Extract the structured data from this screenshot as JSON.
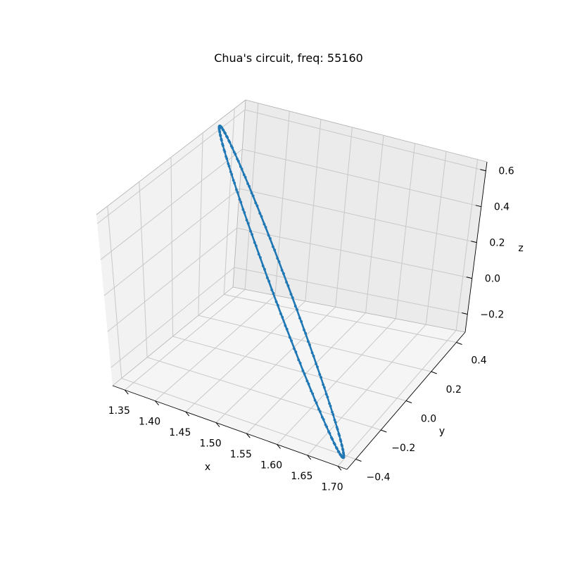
{
  "chart_data": {
    "type": "line",
    "projection": "3d",
    "title": "Chua's circuit, freq: 55160",
    "xlabel": "x",
    "ylabel": "y",
    "zlabel": "z",
    "x_ticks": [
      "1.35",
      "1.40",
      "1.45",
      "1.50",
      "1.55",
      "1.60",
      "1.65",
      "1.70"
    ],
    "y_ticks": [
      "−0.4",
      "−0.2",
      "0.0",
      "0.2",
      "0.4"
    ],
    "z_ticks": [
      "−0.2",
      "0.0",
      "0.2",
      "0.4",
      "0.6"
    ],
    "xlim": [
      1.33,
      1.715
    ],
    "ylim": [
      -0.47,
      0.47
    ],
    "zlim": [
      -0.3,
      0.65
    ],
    "grid": true,
    "marker": "dot",
    "series": [
      {
        "color": "#1f77b4",
        "loop": {
          "x_range": [
            1.342,
            1.702
          ],
          "y_range": [
            -0.43,
            0.43
          ],
          "z_range": [
            -0.27,
            0.63
          ],
          "note_shape": "thin closed orbit between opposite corners"
        },
        "points_per_turn": 260,
        "turns": 2
      }
    ]
  }
}
